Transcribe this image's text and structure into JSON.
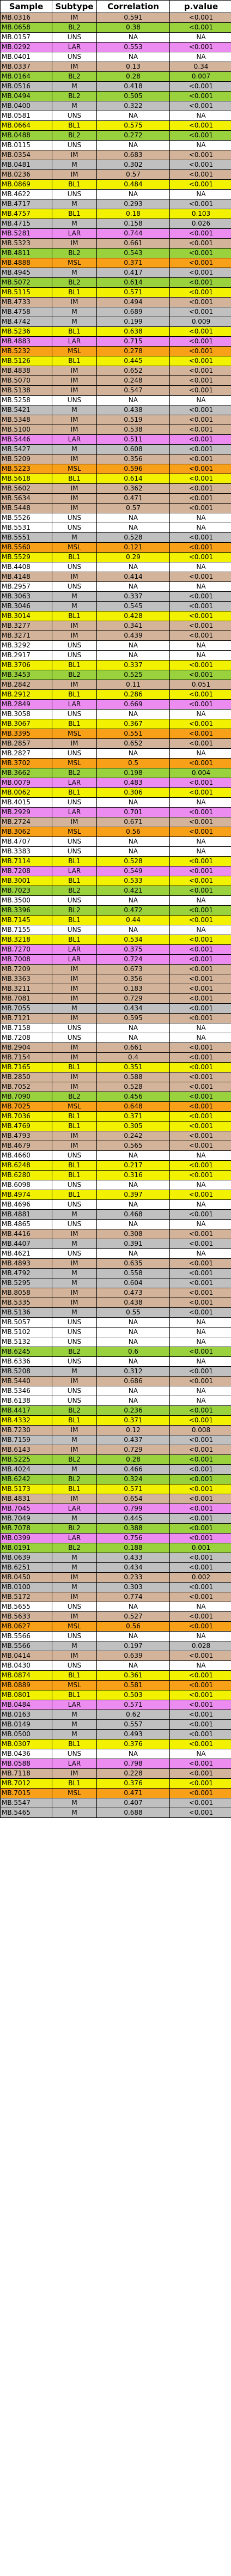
{
  "table": {
    "headers": [
      "Sample",
      "Subtype",
      "Correlation",
      "p.value"
    ],
    "subtype_colors": {
      "IM": "#d3b49a",
      "BL1": "#f2f200",
      "BL2": "#9ad23e",
      "UNS": "#ffffff",
      "LAR": "#ec8cf0",
      "MSL": "#f9a019",
      "M": "#c0c0c0"
    },
    "rows": [
      [
        "MB.0316",
        "IM",
        "0.591",
        "<0.001"
      ],
      [
        "MB.0658",
        "BL2",
        "0.38",
        "<0.001"
      ],
      [
        "MB.0157",
        "UNS",
        "NA",
        "NA"
      ],
      [
        "MB.0292",
        "LAR",
        "0.553",
        "<0.001"
      ],
      [
        "MB.0401",
        "UNS",
        "NA",
        "NA"
      ],
      [
        "MB.0337",
        "IM",
        "0.13",
        "0.34"
      ],
      [
        "MB.0164",
        "BL2",
        "0.28",
        "0.007"
      ],
      [
        "MB.0516",
        "M",
        "0.418",
        "<0.001"
      ],
      [
        "MB.0494",
        "BL2",
        "0.505",
        "<0.001"
      ],
      [
        "MB.0400",
        "M",
        "0.322",
        "<0.001"
      ],
      [
        "MB.0581",
        "UNS",
        "NA",
        "NA"
      ],
      [
        "MB.0664",
        "BL1",
        "0.575",
        "<0.001"
      ],
      [
        "MB.0488",
        "BL2",
        "0.272",
        "<0.001"
      ],
      [
        "MB.0115",
        "UNS",
        "NA",
        "NA"
      ],
      [
        "MB.0354",
        "IM",
        "0.683",
        "<0.001"
      ],
      [
        "MB.0481",
        "M",
        "0.302",
        "<0.001"
      ],
      [
        "MB.0236",
        "IM",
        "0.57",
        "<0.001"
      ],
      [
        "MB.0869",
        "BL1",
        "0.484",
        "<0.001"
      ],
      [
        "MB.4622",
        "UNS",
        "NA",
        "NA"
      ],
      [
        "MB.4717",
        "M",
        "0.293",
        "<0.001"
      ],
      [
        "MB.4757",
        "BL1",
        "0.18",
        "0.103"
      ],
      [
        "MB.4715",
        "M",
        "0.158",
        "0.026"
      ],
      [
        "MB.5281",
        "LAR",
        "0.744",
        "<0.001"
      ],
      [
        "MB.5323",
        "IM",
        "0.661",
        "<0.001"
      ],
      [
        "MB.4811",
        "BL2",
        "0.543",
        "<0.001"
      ],
      [
        "MB.4888",
        "MSL",
        "0.371",
        "<0.001"
      ],
      [
        "MB.4945",
        "M",
        "0.417",
        "<0.001"
      ],
      [
        "MB.5072",
        "BL2",
        "0.614",
        "<0.001"
      ],
      [
        "MB.5115",
        "BL1",
        "0.571",
        "<0.001"
      ],
      [
        "MB.4733",
        "IM",
        "0.494",
        "<0.001"
      ],
      [
        "MB.4758",
        "M",
        "0.689",
        "<0.001"
      ],
      [
        "MB.4742",
        "M",
        "0.199",
        "0.009"
      ],
      [
        "MB.5236",
        "BL1",
        "0.638",
        "<0.001"
      ],
      [
        "MB.4883",
        "LAR",
        "0.715",
        "<0.001"
      ],
      [
        "MB.5232",
        "MSL",
        "0.278",
        "<0.001"
      ],
      [
        "MB.5126",
        "BL1",
        "0.445",
        "<0.001"
      ],
      [
        "MB.4838",
        "IM",
        "0.652",
        "<0.001"
      ],
      [
        "MB.5070",
        "IM",
        "0.248",
        "<0.001"
      ],
      [
        "MB.5138",
        "IM",
        "0.547",
        "<0.001"
      ],
      [
        "MB.5258",
        "UNS",
        "NA",
        "NA"
      ],
      [
        "MB.5421",
        "M",
        "0.438",
        "<0.001"
      ],
      [
        "MB.5348",
        "IM",
        "0.519",
        "<0.001"
      ],
      [
        "MB.5100",
        "IM",
        "0.538",
        "<0.001"
      ],
      [
        "MB.5446",
        "LAR",
        "0.511",
        "<0.001"
      ],
      [
        "MB.5427",
        "M",
        "0.608",
        "<0.001"
      ],
      [
        "MB.5209",
        "IM",
        "0.356",
        "<0.001"
      ],
      [
        "MB.5223",
        "MSL",
        "0.596",
        "<0.001"
      ],
      [
        "MB.5618",
        "BL1",
        "0.614",
        "<0.001"
      ],
      [
        "MB.5602",
        "IM",
        "0.362",
        "<0.001"
      ],
      [
        "MB.5634",
        "IM",
        "0.471",
        "<0.001"
      ],
      [
        "MB.5448",
        "IM",
        "0.57",
        "<0.001"
      ],
      [
        "MB.5526",
        "UNS",
        "NA",
        "NA"
      ],
      [
        "MB.5531",
        "UNS",
        "NA",
        "NA"
      ],
      [
        "MB.5551",
        "M",
        "0.528",
        "<0.001"
      ],
      [
        "MB.5560",
        "MSL",
        "0.121",
        "<0.001"
      ],
      [
        "MB.5529",
        "BL1",
        "0.29",
        "<0.001"
      ],
      [
        "MB.4408",
        "UNS",
        "NA",
        "NA"
      ],
      [
        "MB.4148",
        "IM",
        "0.414",
        "<0.001"
      ],
      [
        "MB.2957",
        "UNS",
        "NA",
        "NA"
      ],
      [
        "MB.3063",
        "M",
        "0.337",
        "<0.001"
      ],
      [
        "MB.3046",
        "M",
        "0.545",
        "<0.001"
      ],
      [
        "MB.3014",
        "BL1",
        "0.428",
        "<0.001"
      ],
      [
        "MB.3277",
        "IM",
        "0.341",
        "<0.001"
      ],
      [
        "MB.3271",
        "IM",
        "0.439",
        "<0.001"
      ],
      [
        "MB.3292",
        "UNS",
        "NA",
        "NA"
      ],
      [
        "MB.2917",
        "UNS",
        "NA",
        "NA"
      ],
      [
        "MB.3706",
        "BL1",
        "0.337",
        "<0.001"
      ],
      [
        "MB.3453",
        "BL2",
        "0.525",
        "<0.001"
      ],
      [
        "MB.2842",
        "IM",
        "0.11",
        "0.051"
      ],
      [
        "MB.2912",
        "BL1",
        "0.286",
        "<0.001"
      ],
      [
        "MB.2849",
        "LAR",
        "0.669",
        "<0.001"
      ],
      [
        "MB.3058",
        "UNS",
        "NA",
        "NA"
      ],
      [
        "MB.3067",
        "BL1",
        "0.367",
        "<0.001"
      ],
      [
        "MB.3395",
        "MSL",
        "0.551",
        "<0.001"
      ],
      [
        "MB.2857",
        "IM",
        "0.652",
        "<0.001"
      ],
      [
        "MB.2827",
        "UNS",
        "NA",
        "NA"
      ],
      [
        "MB.3702",
        "MSL",
        "0.5",
        "<0.001"
      ],
      [
        "MB.3662",
        "BL2",
        "0.198",
        "0.004"
      ],
      [
        "MB.0079",
        "LAR",
        "0.483",
        "<0.001"
      ],
      [
        "MB.0062",
        "BL1",
        "0.306",
        "<0.001"
      ],
      [
        "MB.4015",
        "UNS",
        "NA",
        "NA"
      ],
      [
        "MB.2929",
        "LAR",
        "0.701",
        "<0.001"
      ],
      [
        "MB.2724",
        "IM",
        "0.671",
        "<0.001"
      ],
      [
        "MB.3062",
        "MSL",
        "0.56",
        "<0.001"
      ],
      [
        "MB.4707",
        "UNS",
        "NA",
        "NA"
      ],
      [
        "MB.3383",
        "UNS",
        "NA",
        "NA"
      ],
      [
        "MB.7114",
        "BL1",
        "0.528",
        "<0.001"
      ],
      [
        "MB.7208",
        "LAR",
        "0.549",
        "<0.001"
      ],
      [
        "MB.3001",
        "BL1",
        "0.533",
        "<0.001"
      ],
      [
        "MB.7023",
        "BL2",
        "0.421",
        "<0.001"
      ],
      [
        "MB.3500",
        "UNS",
        "NA",
        "NA"
      ],
      [
        "MB.3396",
        "BL2",
        "0.472",
        "<0.001"
      ],
      [
        "MB.7145",
        "BL1",
        "0.44",
        "<0.001"
      ],
      [
        "MB.7155",
        "UNS",
        "NA",
        "NA"
      ],
      [
        "MB.3218",
        "BL1",
        "0.534",
        "<0.001"
      ],
      [
        "MB.7270",
        "LAR",
        "0.375",
        "<0.001"
      ],
      [
        "MB.7008",
        "LAR",
        "0.724",
        "<0.001"
      ],
      [
        "MB.7209",
        "IM",
        "0.673",
        "<0.001"
      ],
      [
        "MB.3363",
        "IM",
        "0.356",
        "<0.001"
      ],
      [
        "MB.3211",
        "IM",
        "0.183",
        "<0.001"
      ],
      [
        "MB.7081",
        "IM",
        "0.729",
        "<0.001"
      ],
      [
        "MB.7055",
        "M",
        "0.434",
        "<0.001"
      ],
      [
        "MB.7121",
        "IM",
        "0.595",
        "<0.001"
      ],
      [
        "MB.7158",
        "UNS",
        "NA",
        "NA"
      ],
      [
        "MB.7208",
        "UNS",
        "NA",
        "NA"
      ],
      [
        "MB.2904",
        "IM",
        "0.661",
        "<0.001"
      ],
      [
        "MB.7154",
        "IM",
        "0.4",
        "<0.001"
      ],
      [
        "MB.7165",
        "BL1",
        "0.351",
        "<0.001"
      ],
      [
        "MB.2850",
        "IM",
        "0.588",
        "<0.001"
      ],
      [
        "MB.7052",
        "IM",
        "0.528",
        "<0.001"
      ],
      [
        "MB.7090",
        "BL2",
        "0.456",
        "<0.001"
      ],
      [
        "MB.7025",
        "MSL",
        "0.648",
        "<0.001"
      ],
      [
        "MB.7036",
        "BL1",
        "0.371",
        "<0.001"
      ],
      [
        "MB.4769",
        "BL1",
        "0.305",
        "<0.001"
      ],
      [
        "MB.4793",
        "IM",
        "0.242",
        "<0.001"
      ],
      [
        "MB.4679",
        "IM",
        "0.565",
        "<0.001"
      ],
      [
        "MB.4660",
        "UNS",
        "NA",
        "NA"
      ],
      [
        "MB.6248",
        "BL1",
        "0.217",
        "<0.001"
      ],
      [
        "MB.6280",
        "BL1",
        "0.316",
        "<0.001"
      ],
      [
        "MB.6098",
        "UNS",
        "NA",
        "NA"
      ],
      [
        "MB.4974",
        "BL1",
        "0.397",
        "<0.001"
      ],
      [
        "MB.4696",
        "UNS",
        "NA",
        "NA"
      ],
      [
        "MB.4881",
        "M",
        "0.468",
        "<0.001"
      ],
      [
        "MB.4865",
        "UNS",
        "NA",
        "NA"
      ],
      [
        "MB.4416",
        "IM",
        "0.308",
        "<0.001"
      ],
      [
        "MB.4407",
        "M",
        "0.391",
        "<0.001"
      ],
      [
        "MB.4621",
        "UNS",
        "NA",
        "NA"
      ],
      [
        "MB.4893",
        "IM",
        "0.635",
        "<0.001"
      ],
      [
        "MB.4792",
        "M",
        "0.558",
        "<0.001"
      ],
      [
        "MB.5295",
        "M",
        "0.604",
        "<0.001"
      ],
      [
        "MB.8058",
        "IM",
        "0.473",
        "<0.001"
      ],
      [
        "MB.5335",
        "IM",
        "0.438",
        "<0.001"
      ],
      [
        "MB.5136",
        "M",
        "0.55",
        "<0.001"
      ],
      [
        "MB.5057",
        "UNS",
        "NA",
        "NA"
      ],
      [
        "MB.5102",
        "UNS",
        "NA",
        "NA"
      ],
      [
        "MB.5132",
        "UNS",
        "NA",
        "NA"
      ],
      [
        "MB.6245",
        "BL2",
        "0.6",
        "<0.001"
      ],
      [
        "MB.6336",
        "UNS",
        "NA",
        "NA"
      ],
      [
        "MB.5208",
        "M",
        "0.312",
        "<0.001"
      ],
      [
        "MB.5440",
        "IM",
        "0.686",
        "<0.001"
      ],
      [
        "MB.5346",
        "UNS",
        "NA",
        "NA"
      ],
      [
        "MB.6138",
        "UNS",
        "NA",
        "NA"
      ],
      [
        "MB.4417",
        "BL2",
        "0.236",
        "<0.001"
      ],
      [
        "MB.4332",
        "BL1",
        "0.371",
        "<0.001"
      ],
      [
        "MB.7230",
        "IM",
        "0.12",
        "0.008"
      ],
      [
        "MB.7159",
        "M",
        "0.437",
        "<0.001"
      ],
      [
        "MB.6143",
        "IM",
        "0.729",
        "<0.001"
      ],
      [
        "MB.5225",
        "BL2",
        "0.28",
        "<0.001"
      ],
      [
        "MB.4024",
        "M",
        "0.466",
        "<0.001"
      ],
      [
        "MB.6242",
        "BL2",
        "0.324",
        "<0.001"
      ],
      [
        "MB.5173",
        "BL1",
        "0.571",
        "<0.001"
      ],
      [
        "MB.4831",
        "IM",
        "0.654",
        "<0.001"
      ],
      [
        "MB.7045",
        "LAR",
        "0.799",
        "<0.001"
      ],
      [
        "MB.7049",
        "M",
        "0.445",
        "<0.001"
      ],
      [
        "MB.7078",
        "BL2",
        "0.388",
        "<0.001"
      ],
      [
        "MB.0399",
        "LAR",
        "0.756",
        "<0.001"
      ],
      [
        "MB.0191",
        "BL2",
        "0.188",
        "0.001"
      ],
      [
        "MB.0639",
        "M",
        "0.433",
        "<0.001"
      ],
      [
        "MB.6251",
        "M",
        "0.434",
        "<0.001"
      ],
      [
        "MB.0450",
        "IM",
        "0.233",
        "0.002"
      ],
      [
        "MB.0100",
        "M",
        "0.303",
        "<0.001"
      ],
      [
        "MB.5172",
        "IM",
        "0.774",
        "<0.001"
      ],
      [
        "MB.5655",
        "UNS",
        "NA",
        "NA"
      ],
      [
        "MB.5633",
        "IM",
        "0.527",
        "<0.001"
      ],
      [
        "MB.0627",
        "MSL",
        "0.56",
        "<0.001"
      ],
      [
        "MB.5566",
        "UNS",
        "NA",
        "NA"
      ],
      [
        "MB.5566",
        "M",
        "0.197",
        "0.028"
      ],
      [
        "MB.0414",
        "IM",
        "0.639",
        "<0.001"
      ],
      [
        "MB.0430",
        "UNS",
        "NA",
        "NA"
      ],
      [
        "MB.0874",
        "BL1",
        "0.361",
        "<0.001"
      ],
      [
        "MB.0889",
        "MSL",
        "0.581",
        "<0.001"
      ],
      [
        "MB.0801",
        "BL1",
        "0.503",
        "<0.001"
      ],
      [
        "MB.0484",
        "LAR",
        "0.571",
        "<0.001"
      ],
      [
        "MB.0163",
        "M",
        "0.62",
        "<0.001"
      ],
      [
        "MB.0149",
        "M",
        "0.557",
        "<0.001"
      ],
      [
        "MB.0500",
        "M",
        "0.493",
        "<0.001"
      ],
      [
        "MB.0307",
        "BL1",
        "0.376",
        "<0.001"
      ],
      [
        "MB.0436",
        "UNS",
        "NA",
        "NA"
      ],
      [
        "MB.0588",
        "LAR",
        "0.798",
        "<0.001"
      ],
      [
        "MB.7118",
        "IM",
        "0.228",
        "<0.001"
      ],
      [
        "MB.7012",
        "BL1",
        "0.376",
        "<0.001"
      ],
      [
        "MB.7015",
        "MSL",
        "0.471",
        "<0.001"
      ],
      [
        "MB.5547",
        "M",
        "0.407",
        "<0.001"
      ],
      [
        "MB.5465",
        "M",
        "0.688",
        "<0.001"
      ]
    ]
  }
}
